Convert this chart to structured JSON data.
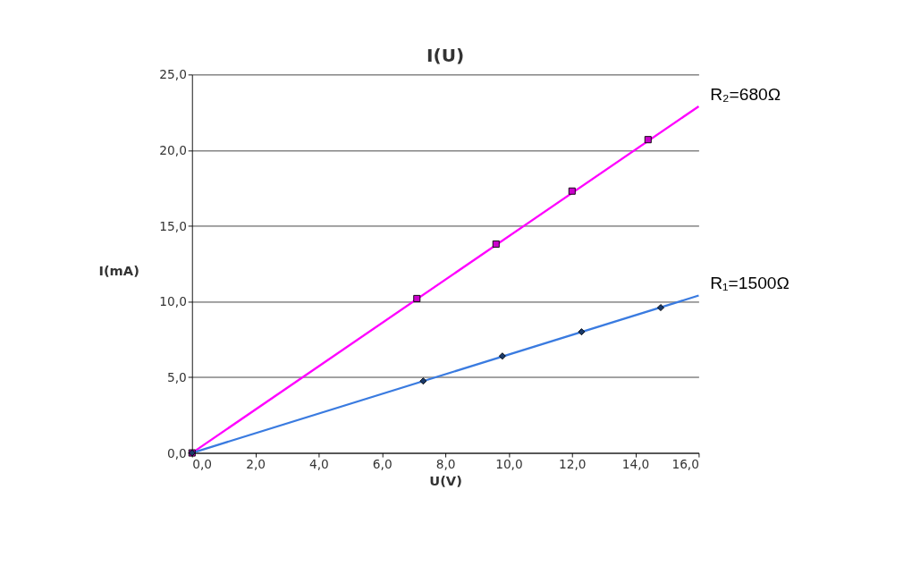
{
  "chart_data": {
    "type": "scatter",
    "title": "I(U)",
    "xlabel": "U(V)",
    "ylabel": "I(mA)",
    "xlim": [
      0,
      16
    ],
    "ylim": [
      0,
      25
    ],
    "xticks": [
      {
        "value": 0,
        "label": "0,0"
      },
      {
        "value": 2,
        "label": "2,0"
      },
      {
        "value": 4,
        "label": "4,0"
      },
      {
        "value": 6,
        "label": "6,0"
      },
      {
        "value": 8,
        "label": "8,0"
      },
      {
        "value": 10,
        "label": "10,0"
      },
      {
        "value": 12,
        "label": "12,0"
      },
      {
        "value": 14,
        "label": "14,0"
      },
      {
        "value": 16,
        "label": "16,0"
      }
    ],
    "yticks": [
      {
        "value": 0,
        "label": "0,0"
      },
      {
        "value": 5,
        "label": "5,0"
      },
      {
        "value": 10,
        "label": "10,0"
      },
      {
        "value": 15,
        "label": "15,0"
      },
      {
        "value": 20,
        "label": "20,0"
      },
      {
        "value": 25,
        "label": "25,0"
      }
    ],
    "grid": "y",
    "legend": false,
    "series": [
      {
        "type": "line",
        "name": "R₂=680Ω",
        "color": "#ff00ff",
        "x": [
          0,
          16
        ],
        "values": [
          0,
          22.9
        ],
        "marker": "none"
      },
      {
        "type": "line",
        "name": "R₁=1500Ω",
        "color": "#3a7be0",
        "x": [
          0,
          16
        ],
        "values": [
          0,
          10.4
        ],
        "marker": "none"
      },
      {
        "type": "scatter",
        "color": "#cc00cc",
        "marker": "square",
        "x": [
          0,
          7.1,
          9.6,
          12.0,
          14.4
        ],
        "values": [
          0,
          10.2,
          13.8,
          17.3,
          20.7
        ]
      },
      {
        "type": "scatter",
        "color": "#1a3a6a",
        "marker": "diamond",
        "x": [
          0,
          7.3,
          9.8,
          12.3,
          14.8
        ],
        "values": [
          0,
          4.75,
          6.4,
          8.0,
          9.6
        ]
      }
    ]
  }
}
